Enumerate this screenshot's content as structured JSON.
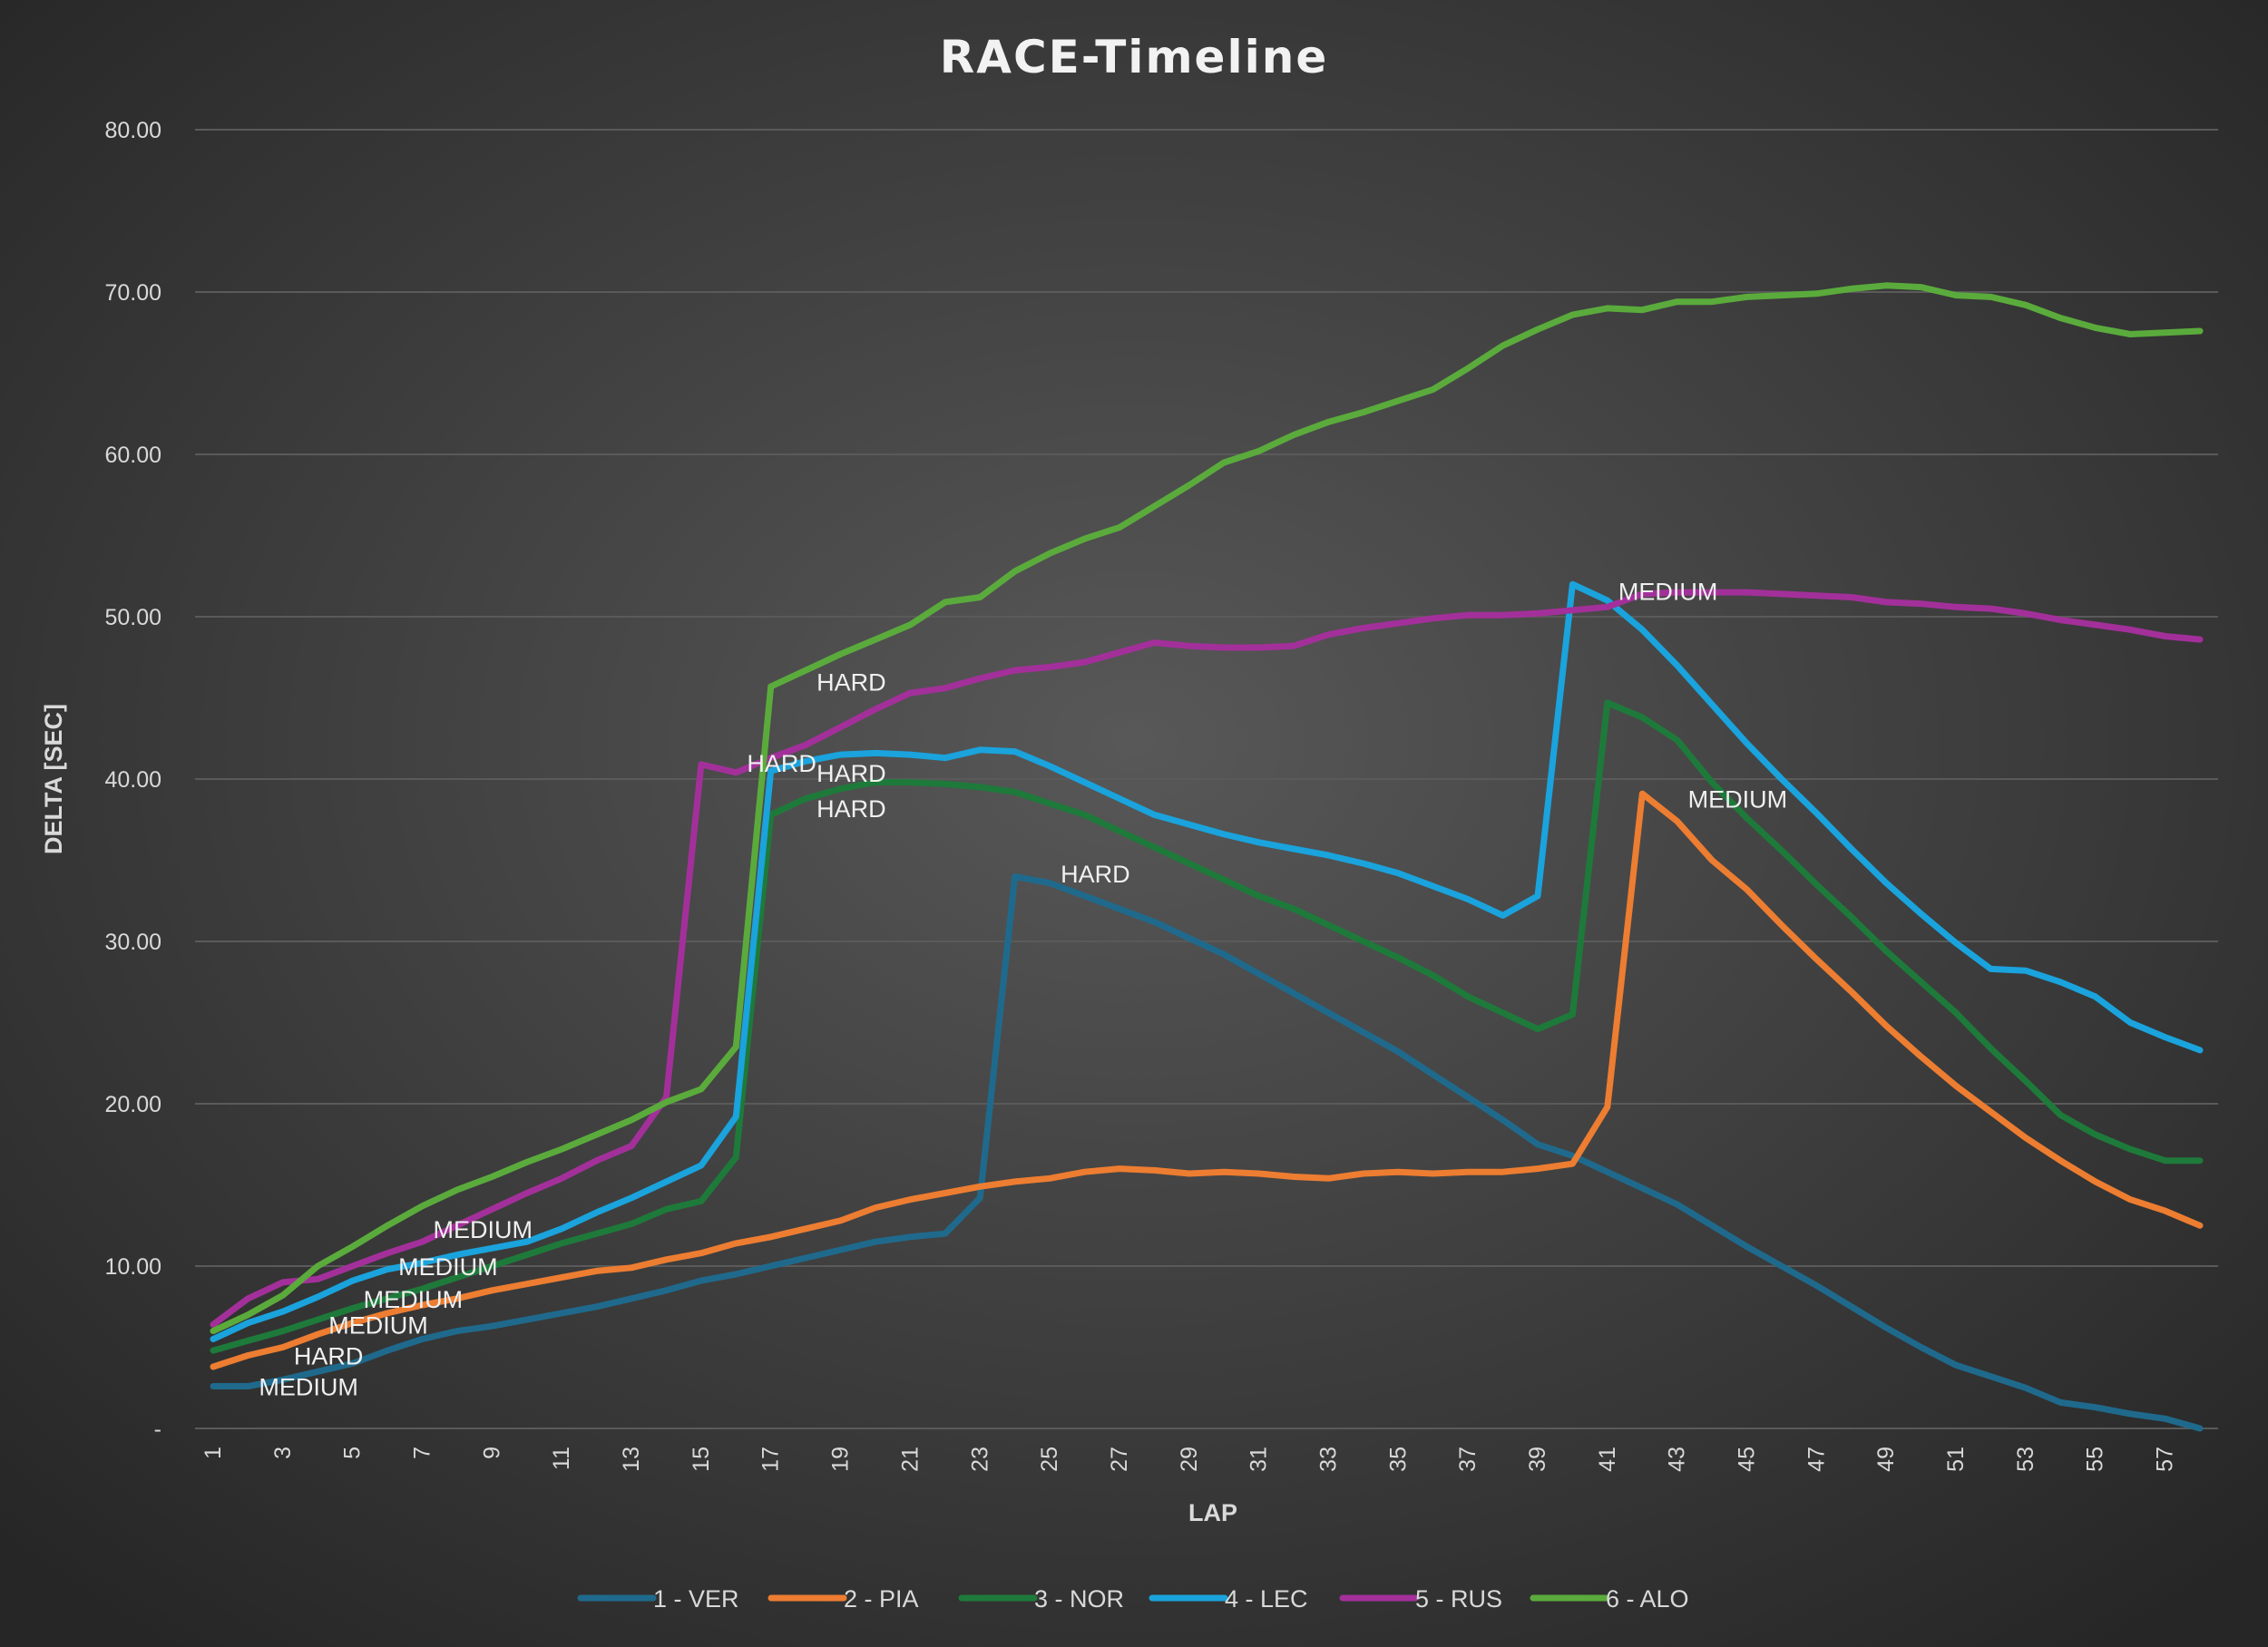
{
  "chart_data": {
    "type": "line",
    "title": "RACE-Timeline",
    "xlabel": "LAP",
    "ylabel": "DELTA [SEC]",
    "ylim": [
      0,
      80
    ],
    "y_ticks": [
      "-",
      "10.00",
      "20.00",
      "30.00",
      "40.00",
      "50.00",
      "60.00",
      "70.00",
      "80.00"
    ],
    "x_ticks": [
      "1",
      "3",
      "5",
      "7",
      "9",
      "11",
      "13",
      "15",
      "17",
      "19",
      "21",
      "23",
      "25",
      "27",
      "29",
      "31",
      "33",
      "35",
      "37",
      "39",
      "41",
      "43",
      "45",
      "47",
      "49",
      "51",
      "53",
      "55",
      "57"
    ],
    "grid": true,
    "legend_position": "bottom",
    "x": [
      1,
      2,
      3,
      4,
      5,
      6,
      7,
      8,
      9,
      10,
      11,
      12,
      13,
      14,
      15,
      16,
      17,
      18,
      19,
      20,
      21,
      22,
      23,
      24,
      25,
      26,
      27,
      28,
      29,
      30,
      31,
      32,
      33,
      34,
      35,
      36,
      37,
      38,
      39,
      40,
      41,
      42,
      43,
      44,
      45,
      46,
      47,
      48,
      49,
      50,
      51,
      52,
      53,
      54,
      55,
      56,
      57,
      58
    ],
    "series": [
      {
        "name": "1 - VER",
        "color": "#1f6a8c",
        "values": [
          2.6,
          2.6,
          3.0,
          3.5,
          4.0,
          4.8,
          5.5,
          6.0,
          6.3,
          6.7,
          7.1,
          7.5,
          8.0,
          8.5,
          9.1,
          9.5,
          10.0,
          10.5,
          11.0,
          11.5,
          11.8,
          12.0,
          14.2,
          34.0,
          33.6,
          32.8,
          32.0,
          31.2,
          30.2,
          29.2,
          28.0,
          26.8,
          25.6,
          24.4,
          23.2,
          21.8,
          20.4,
          19.0,
          17.5,
          16.8,
          15.8,
          14.8,
          13.8,
          12.5,
          11.2,
          10.0,
          8.8,
          7.5,
          6.2,
          5.0,
          3.9,
          3.2,
          2.5,
          1.6,
          1.3,
          0.9,
          0.6,
          0.0
        ]
      },
      {
        "name": "2 - PIA",
        "color": "#ed7d31",
        "values": [
          3.8,
          4.5,
          5.0,
          5.8,
          6.5,
          7.1,
          7.6,
          8.0,
          8.5,
          8.9,
          9.3,
          9.7,
          9.9,
          10.4,
          10.8,
          11.4,
          11.8,
          12.3,
          12.8,
          13.6,
          14.1,
          14.5,
          14.9,
          15.2,
          15.4,
          15.8,
          16.0,
          15.9,
          15.7,
          15.8,
          15.7,
          15.5,
          15.4,
          15.7,
          15.8,
          15.7,
          15.8,
          15.8,
          16.0,
          16.3,
          19.8,
          39.1,
          37.4,
          35.0,
          33.2,
          31.0,
          28.9,
          26.9,
          24.8,
          22.9,
          21.1,
          19.5,
          17.9,
          16.5,
          15.2,
          14.1,
          13.4,
          12.5
        ]
      },
      {
        "name": "3 - NOR",
        "color": "#1e7a3a",
        "values": [
          4.8,
          5.4,
          6.0,
          6.7,
          7.4,
          8.0,
          8.6,
          9.3,
          10.0,
          10.7,
          11.4,
          12.0,
          12.6,
          13.5,
          14.0,
          16.7,
          37.8,
          38.8,
          39.4,
          39.8,
          39.8,
          39.7,
          39.5,
          39.2,
          38.5,
          37.8,
          36.8,
          35.8,
          34.8,
          33.8,
          32.8,
          32.0,
          31.0,
          30.0,
          29.0,
          27.9,
          26.6,
          25.6,
          24.6,
          25.5,
          44.7,
          43.8,
          42.4,
          39.8,
          37.6,
          35.6,
          33.5,
          31.5,
          29.4,
          27.5,
          25.6,
          23.4,
          21.4,
          19.3,
          18.1,
          17.2,
          16.5,
          16.5
        ]
      },
      {
        "name": "4 - LEC",
        "color": "#1aa3dc",
        "values": [
          5.5,
          6.5,
          7.2,
          8.1,
          9.1,
          9.8,
          10.2,
          10.7,
          11.1,
          11.5,
          12.3,
          13.3,
          14.2,
          15.2,
          16.2,
          19.2,
          40.5,
          41.1,
          41.5,
          41.6,
          41.5,
          41.3,
          41.8,
          41.7,
          40.8,
          39.8,
          38.8,
          37.8,
          37.2,
          36.6,
          36.1,
          35.7,
          35.3,
          34.8,
          34.2,
          33.4,
          32.6,
          31.6,
          32.8,
          52.0,
          51.0,
          49.2,
          47.0,
          44.6,
          42.2,
          40.0,
          37.9,
          35.7,
          33.6,
          31.7,
          29.9,
          28.3,
          28.2,
          27.5,
          26.6,
          25.0,
          24.1,
          23.3
        ]
      },
      {
        "name": "5 - RUS",
        "color": "#a3309a",
        "values": [
          6.4,
          8.0,
          9.0,
          9.2,
          10.0,
          10.8,
          11.5,
          12.5,
          13.5,
          14.5,
          15.4,
          16.5,
          17.4,
          20.4,
          40.9,
          40.4,
          41.3,
          42.1,
          43.2,
          44.3,
          45.3,
          45.6,
          46.2,
          46.7,
          46.9,
          47.2,
          47.8,
          48.4,
          48.2,
          48.1,
          48.1,
          48.2,
          48.9,
          49.3,
          49.6,
          49.9,
          50.1,
          50.1,
          50.2,
          50.4,
          50.6,
          51.4,
          51.5,
          51.5,
          51.5,
          51.4,
          51.3,
          51.2,
          50.9,
          50.8,
          50.6,
          50.5,
          50.2,
          49.8,
          49.5,
          49.2,
          48.8,
          48.6
        ]
      },
      {
        "name": "6 - ALO",
        "color": "#5aab3c",
        "values": [
          6.0,
          7.0,
          8.2,
          10.0,
          11.2,
          12.5,
          13.7,
          14.7,
          15.5,
          16.4,
          17.2,
          18.1,
          19.0,
          20.1,
          20.9,
          23.5,
          45.7,
          46.7,
          47.7,
          48.6,
          49.5,
          50.9,
          51.2,
          52.8,
          53.9,
          54.8,
          55.5,
          56.8,
          58.1,
          59.5,
          60.2,
          61.2,
          62.0,
          62.6,
          63.3,
          64.0,
          65.3,
          66.7,
          67.7,
          68.6,
          69.0,
          68.9,
          69.4,
          69.4,
          69.7,
          69.8,
          69.9,
          70.2,
          70.4,
          70.3,
          69.8,
          69.7,
          69.2,
          68.4,
          67.8,
          67.4,
          67.5,
          67.6
        ]
      }
    ],
    "annotations": [
      {
        "text": "MEDIUM",
        "lap": 2.0,
        "value": 2.6
      },
      {
        "text": "HARD",
        "lap": 3.0,
        "value": 4.5
      },
      {
        "text": "MEDIUM",
        "lap": 4.0,
        "value": 6.4
      },
      {
        "text": "MEDIUM",
        "lap": 5.0,
        "value": 8.0
      },
      {
        "text": "MEDIUM",
        "lap": 6.0,
        "value": 10.0
      },
      {
        "text": "MEDIUM",
        "lap": 7.0,
        "value": 12.3
      },
      {
        "text": "HARD",
        "lap": 16.0,
        "value": 41.0
      },
      {
        "text": "HARD",
        "lap": 18.0,
        "value": 46.0
      },
      {
        "text": "HARD",
        "lap": 18.0,
        "value": 40.4
      },
      {
        "text": "HARD",
        "lap": 18.0,
        "value": 38.2
      },
      {
        "text": "HARD",
        "lap": 25.0,
        "value": 34.2
      },
      {
        "text": "MEDIUM",
        "lap": 41.0,
        "value": 51.6
      },
      {
        "text": "MEDIUM",
        "lap": 43.0,
        "value": 38.8
      }
    ]
  }
}
